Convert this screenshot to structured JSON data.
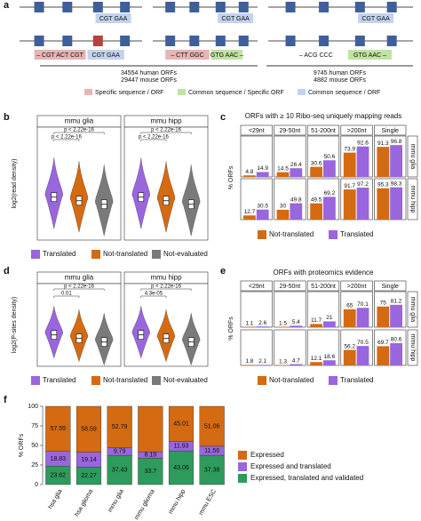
{
  "panel_labels": [
    "a",
    "b",
    "c",
    "d",
    "e",
    "f"
  ],
  "diagram": {
    "top_codons": [
      "CGT  GAA",
      "CGT  GAA",
      "CGT  GAA"
    ],
    "bottom_codons": [
      [
        "– CGT ACT CGT",
        "CGT  GAA"
      ],
      [
        "– CTT GGC",
        "GTG AAC –"
      ],
      [
        "– ACG CCC",
        "GTG AAC –"
      ]
    ],
    "counts": [
      [
        "34554 human ORFs",
        "29447 mouse ORFs"
      ],
      [
        "9745 human ORFs",
        "4882 mouse ORFs"
      ]
    ],
    "legend": [
      {
        "name": "Specific sequence / ORF",
        "color": "#e8b4b4"
      },
      {
        "name": "Common sequence / Specific ORF",
        "color": "#bfe3a0"
      },
      {
        "name": "Common sequence / ORF",
        "color": "#c3d3ee"
      }
    ]
  },
  "chart_data": [
    {
      "type": "violin",
      "ylabel": "log2(read density)",
      "facets": [
        "mmu glia",
        "mmu hipp"
      ],
      "annotations": [
        [
          "p < 2.22e-16",
          "p < 2.22e-16"
        ],
        [
          "p < 2.22e-16",
          "p < 2.22e-16"
        ]
      ],
      "series": [
        {
          "name": "Translated",
          "color": "#9966dd"
        },
        {
          "name": "Not-translated",
          "color": "#d46a12"
        },
        {
          "name": "Not-evaluated",
          "color": "#7a7a7a"
        }
      ]
    },
    {
      "type": "facet-bar",
      "title": "ORFs with ≥ 10 Ribo-seq uniquely mapping reads",
      "ylabel": "% ORFs",
      "categories": [
        "<29nt",
        "29-50nt",
        "51-200nt",
        ">200nt",
        "Single"
      ],
      "facets": [
        "mmu glia",
        "mmu hipp"
      ],
      "ylim": [
        0,
        100
      ],
      "series": [
        {
          "name": "Not-translated",
          "color": "#d46a12",
          "values": [
            [
              4.8,
              14.5,
              30.6,
              73.9,
              91.3
            ],
            [
              12.7,
              30,
              49.5,
              91.7,
              95.3
            ]
          ]
        },
        {
          "name": "Translated",
          "color": "#9966dd",
          "values": [
            [
              14.9,
              26.4,
              50.6,
              92.6,
              96.8
            ],
            [
              30.5,
              49.8,
              69.2,
              97.2,
              98.3
            ]
          ]
        }
      ]
    },
    {
      "type": "violin",
      "ylabel": "log2(P-sites density)",
      "facets": [
        "mmu glia",
        "mmu hipp"
      ],
      "annotations": [
        [
          "0.01",
          "p < 2.22e-16"
        ],
        [
          "4.3e-05",
          "p < 2.22e-16"
        ]
      ],
      "series": [
        {
          "name": "Translated",
          "color": "#9966dd"
        },
        {
          "name": "Not-translated",
          "color": "#d46a12"
        },
        {
          "name": "Not-evaluated",
          "color": "#7a7a7a"
        }
      ]
    },
    {
      "type": "facet-bar",
      "title": "ORFs with proteomics evidence",
      "ylabel": "% ORFs",
      "categories": [
        "<29nt",
        "29-50nt",
        "51-200nt",
        ">200nt",
        "Single"
      ],
      "facets": [
        "mmu glia",
        "mmu hipp"
      ],
      "ylim": [
        0,
        100
      ],
      "series": [
        {
          "name": "Not-translated",
          "color": "#d46a12",
          "values": [
            [
              1.1,
              1.5,
              11.7,
              65,
              75
            ],
            [
              1.8,
              1.3,
              12.1,
              56.2,
              69.7
            ]
          ]
        },
        {
          "name": "Translated",
          "color": "#9966dd",
          "values": [
            [
              2.6,
              5.4,
              21,
              70.1,
              81.2
            ],
            [
              2.1,
              4.7,
              18.6,
              70.5,
              80.6
            ]
          ]
        }
      ]
    },
    {
      "type": "stacked-bar",
      "ylabel": "% ORFs",
      "categories": [
        "hsa glia",
        "hsa glioma",
        "mmu glia",
        "mmu glioma",
        "mmu hipp",
        "mmu ESC"
      ],
      "ylim": [
        0,
        100
      ],
      "yticks": [
        0,
        25,
        50,
        75,
        100
      ],
      "series": [
        {
          "name": "Expressed",
          "color": "#d46a12",
          "values": [
            57.55,
            58.59,
            52.79,
            58.11,
            45.01,
            51.06
          ],
          "value_labels": [
            "57.55",
            "58.59",
            "52.79",
            null,
            "45.01",
            "51.06"
          ]
        },
        {
          "name": "Expressed and translated",
          "color": "#9966dd",
          "values": [
            18.83,
            19.14,
            9.79,
            8.19,
            11.93,
            11.56
          ]
        },
        {
          "name": "Expressed, translated and validated",
          "color": "#2e9a5c",
          "values": [
            23.62,
            22.27,
            37.43,
            33.7,
            43.06,
            37.38
          ]
        }
      ]
    }
  ]
}
